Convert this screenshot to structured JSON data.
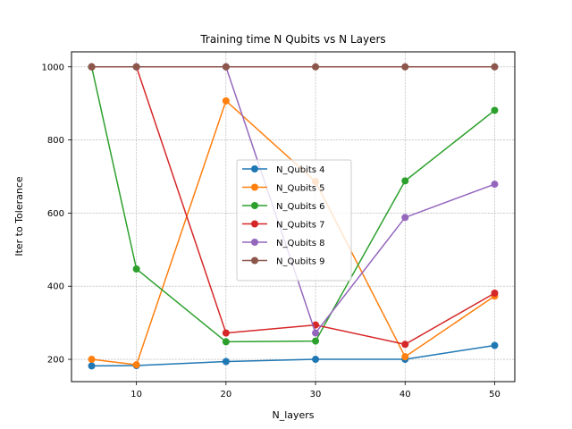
{
  "chart_data": {
    "type": "line",
    "title": "Training time N Qubits vs N Layers",
    "xlabel": "N_layers",
    "ylabel": "Iter to Tolerance",
    "x": [
      5,
      10,
      20,
      30,
      40,
      50
    ],
    "xticks": [
      10,
      20,
      30,
      40,
      50
    ],
    "yticks": [
      200,
      400,
      600,
      800,
      1000
    ],
    "xlim": [
      2.75,
      52.25
    ],
    "ylim": [
      139,
      1041
    ],
    "grid": true,
    "legend_position": "center",
    "series": [
      {
        "name": "N_Qubits 4",
        "color": "#1f77b4",
        "values": [
          182,
          183,
          194,
          200,
          200,
          238
        ]
      },
      {
        "name": "N_Qubits 5",
        "color": "#ff7f0e",
        "values": [
          200,
          185,
          907,
          686,
          207,
          373
        ]
      },
      {
        "name": "N_Qubits 6",
        "color": "#2ca02c",
        "values": [
          1000,
          447,
          248,
          250,
          688,
          881
        ]
      },
      {
        "name": "N_Qubits 7",
        "color": "#d62728",
        "values": [
          1000,
          1000,
          272,
          294,
          241,
          381
        ]
      },
      {
        "name": "N_Qubits 8",
        "color": "#9467bd",
        "values": [
          1000,
          1000,
          1000,
          272,
          588,
          679
        ]
      },
      {
        "name": "N_Qubits 9",
        "color": "#8c564b",
        "values": [
          1000,
          1000,
          1000,
          1000,
          1000,
          1000
        ]
      }
    ]
  }
}
